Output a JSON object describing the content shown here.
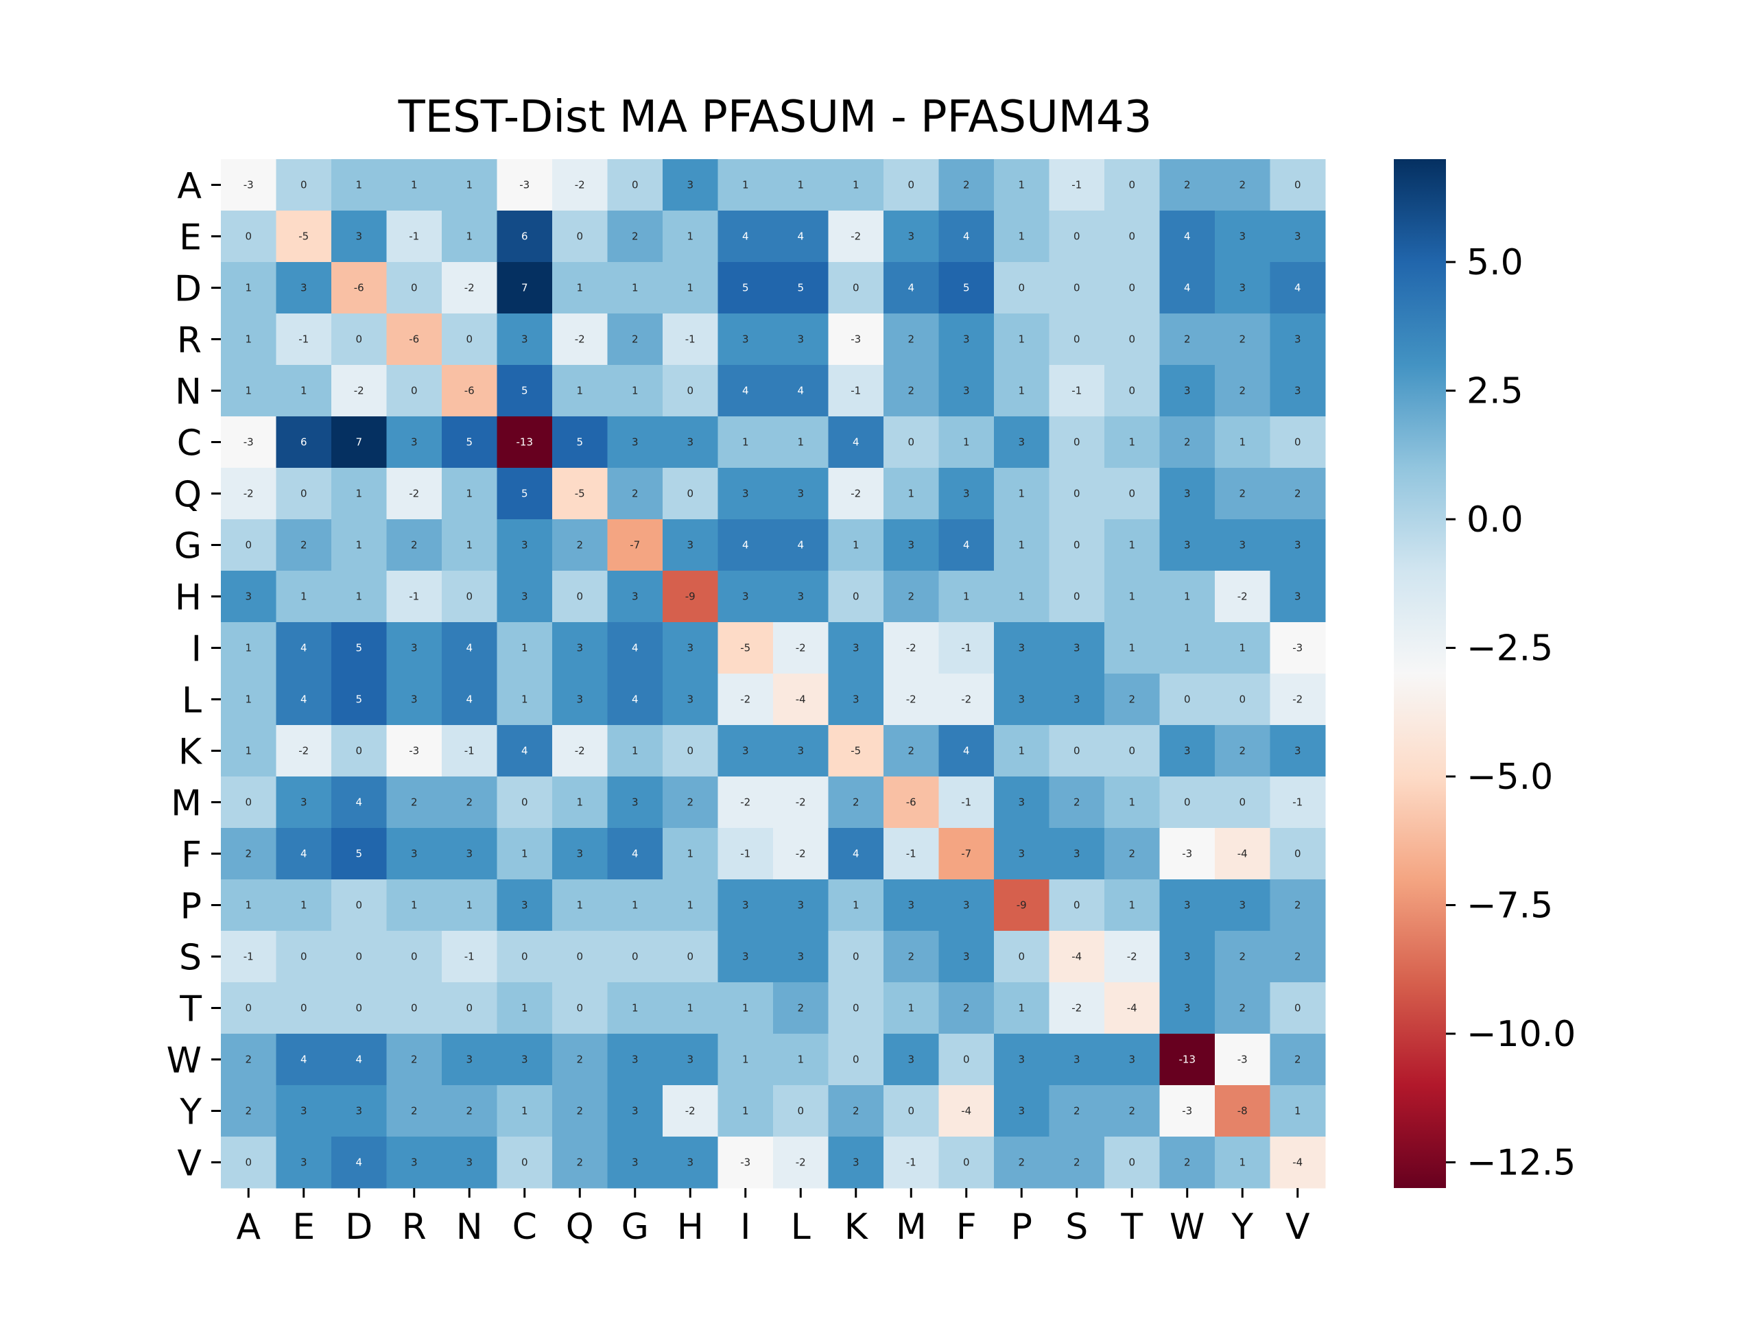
{
  "chart_data": {
    "type": "heatmap",
    "title": "TEST-Dist MA PFASUM - PFASUM43",
    "xlabel": "",
    "ylabel": "",
    "rows": [
      "A",
      "E",
      "D",
      "R",
      "N",
      "C",
      "Q",
      "G",
      "H",
      "I",
      "L",
      "K",
      "M",
      "F",
      "P",
      "S",
      "T",
      "W",
      "Y",
      "V"
    ],
    "columns": [
      "A",
      "E",
      "D",
      "R",
      "N",
      "C",
      "Q",
      "G",
      "H",
      "I",
      "L",
      "K",
      "M",
      "F",
      "P",
      "S",
      "T",
      "W",
      "Y",
      "V"
    ],
    "values": [
      [
        -3,
        0,
        1,
        1,
        1,
        -3,
        -2,
        0,
        3,
        1,
        1,
        1,
        0,
        2,
        1,
        -1,
        0,
        2,
        2,
        0
      ],
      [
        0,
        -5,
        3,
        -1,
        1,
        6,
        0,
        2,
        1,
        4,
        4,
        -2,
        3,
        4,
        1,
        0,
        0,
        4,
        3,
        3
      ],
      [
        1,
        3,
        -6,
        0,
        -2,
        7,
        1,
        1,
        1,
        5,
        5,
        0,
        4,
        5,
        0,
        0,
        0,
        4,
        3,
        4
      ],
      [
        1,
        -1,
        0,
        -6,
        0,
        3,
        -2,
        2,
        -1,
        3,
        3,
        -3,
        2,
        3,
        1,
        0,
        0,
        2,
        2,
        3
      ],
      [
        1,
        1,
        -2,
        0,
        -6,
        5,
        1,
        1,
        0,
        4,
        4,
        -1,
        2,
        3,
        1,
        -1,
        0,
        3,
        2,
        3
      ],
      [
        -3,
        6,
        7,
        3,
        5,
        -13,
        5,
        3,
        3,
        1,
        1,
        4,
        0,
        1,
        3,
        0,
        1,
        2,
        1,
        0
      ],
      [
        -2,
        0,
        1,
        -2,
        1,
        5,
        -5,
        2,
        0,
        3,
        3,
        -2,
        1,
        3,
        1,
        0,
        0,
        3,
        2,
        2
      ],
      [
        0,
        2,
        1,
        2,
        1,
        3,
        2,
        -7,
        3,
        4,
        4,
        1,
        3,
        4,
        1,
        0,
        1,
        3,
        3,
        3
      ],
      [
        3,
        1,
        1,
        -1,
        0,
        3,
        0,
        3,
        -9,
        3,
        3,
        0,
        2,
        1,
        1,
        0,
        1,
        1,
        -2,
        3
      ],
      [
        1,
        4,
        5,
        3,
        4,
        1,
        3,
        4,
        3,
        -5,
        -2,
        3,
        -2,
        -1,
        3,
        3,
        1,
        1,
        1,
        -3
      ],
      [
        1,
        4,
        5,
        3,
        4,
        1,
        3,
        4,
        3,
        -2,
        -4,
        3,
        -2,
        -2,
        3,
        3,
        2,
        0,
        0,
        -2
      ],
      [
        1,
        -2,
        0,
        -3,
        -1,
        4,
        -2,
        1,
        0,
        3,
        3,
        -5,
        2,
        4,
        1,
        0,
        0,
        3,
        2,
        3
      ],
      [
        0,
        3,
        4,
        2,
        2,
        0,
        1,
        3,
        2,
        -2,
        -2,
        2,
        -6,
        -1,
        3,
        2,
        1,
        0,
        0,
        -1
      ],
      [
        2,
        4,
        5,
        3,
        3,
        1,
        3,
        4,
        1,
        -1,
        -2,
        4,
        -1,
        -7,
        3,
        3,
        2,
        -3,
        -4,
        0
      ],
      [
        1,
        1,
        0,
        1,
        1,
        3,
        1,
        1,
        1,
        3,
        3,
        1,
        3,
        3,
        -9,
        0,
        1,
        3,
        3,
        2
      ],
      [
        -1,
        0,
        0,
        0,
        -1,
        0,
        0,
        0,
        0,
        3,
        3,
        0,
        2,
        3,
        0,
        -4,
        -2,
        3,
        2,
        2
      ],
      [
        0,
        0,
        0,
        0,
        0,
        1,
        0,
        1,
        1,
        1,
        2,
        0,
        1,
        2,
        1,
        -2,
        -4,
        3,
        2,
        0
      ],
      [
        2,
        4,
        4,
        2,
        3,
        3,
        2,
        3,
        3,
        1,
        1,
        0,
        3,
        0,
        3,
        3,
        3,
        -13,
        -3,
        2
      ],
      [
        2,
        3,
        3,
        2,
        2,
        1,
        2,
        3,
        -2,
        1,
        0,
        2,
        0,
        -4,
        3,
        2,
        2,
        -3,
        -8,
        1
      ],
      [
        0,
        3,
        4,
        3,
        3,
        0,
        2,
        3,
        3,
        -3,
        -2,
        3,
        -1,
        0,
        2,
        2,
        0,
        2,
        1,
        -4
      ]
    ],
    "vmin": -13,
    "vmax": 7,
    "colormap": "RdBu",
    "colorbar_ticks": [
      5.0,
      2.5,
      0.0,
      -2.5,
      -5.0,
      -7.5,
      -10.0,
      -12.5
    ],
    "colorbar_tick_labels": [
      "5.0",
      "2.5",
      "0.0",
      "−2.5",
      "−5.0",
      "−7.5",
      "−10.0",
      "−12.5"
    ],
    "annotations": true,
    "grid": false
  }
}
